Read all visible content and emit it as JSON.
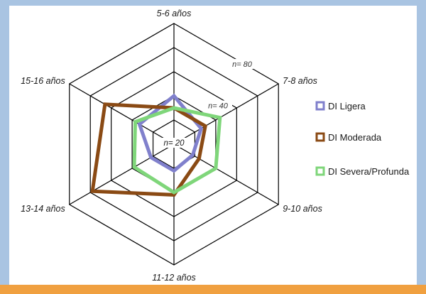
{
  "chart_data": {
    "type": "radar",
    "title": "",
    "axes": [
      "5-6 años",
      "7-8 años",
      "9-10 años",
      "11-12 años",
      "13-14 años",
      "15-16 años"
    ],
    "ring_values": [
      20,
      40,
      60,
      80,
      100
    ],
    "ring_labels": [
      {
        "value": 20,
        "text": "n= 20"
      },
      {
        "value": 40,
        "text": "n= 40"
      },
      {
        "value": 80,
        "text": "n= 80"
      }
    ],
    "series": [
      {
        "name": "DI Ligera",
        "color": "#8080cc",
        "values": [
          40,
          26,
          18,
          22,
          22,
          33
        ]
      },
      {
        "name": "DI Moderada",
        "color": "#8a4a14",
        "values": [
          30,
          30,
          24,
          42,
          78,
          66
        ]
      },
      {
        "name": "DI Severa/Profunda",
        "color": "#7fd67a",
        "values": [
          30,
          44,
          40,
          40,
          38,
          37
        ]
      }
    ],
    "legend_position": "right"
  }
}
